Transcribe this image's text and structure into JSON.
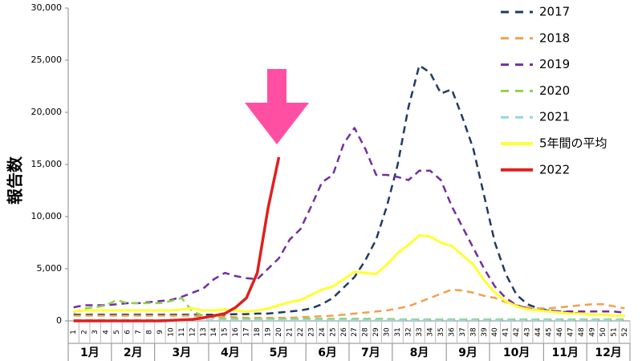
{
  "chart_data": {
    "type": "line",
    "y_label": "報告数",
    "categories": [
      "1",
      "2",
      "3",
      "4",
      "5",
      "6",
      "7",
      "8",
      "9",
      "10",
      "11",
      "12",
      "13",
      "14",
      "15",
      "16",
      "17",
      "18",
      "19",
      "20",
      "21",
      "22",
      "23",
      "24",
      "25",
      "26",
      "27",
      "28",
      "29",
      "30",
      "31",
      "32",
      "33",
      "34",
      "35",
      "36",
      "37",
      "38",
      "39",
      "40",
      "41",
      "42",
      "43",
      "44",
      "45",
      "46",
      "47",
      "48",
      "49",
      "50",
      "51",
      "52"
    ],
    "month_groups": [
      {
        "label": "1月",
        "count": 4
      },
      {
        "label": "2月",
        "count": 4
      },
      {
        "label": "3月",
        "count": 5
      },
      {
        "label": "4月",
        "count": 4
      },
      {
        "label": "5月",
        "count": 5
      },
      {
        "label": "6月",
        "count": 4
      },
      {
        "label": "7月",
        "count": 4
      },
      {
        "label": "8月",
        "count": 5
      },
      {
        "label": "9月",
        "count": 4
      },
      {
        "label": "10月",
        "count": 5
      },
      {
        "label": "11月",
        "count": 4
      },
      {
        "label": "12月",
        "count": 4
      }
    ],
    "ylim": [
      0,
      30000
    ],
    "yticks": [
      0,
      {
        "value": 5000,
        "label": "5,000"
      },
      {
        "value": 10000,
        "label": "10,000"
      },
      {
        "value": 15000,
        "label": "15,000"
      },
      {
        "value": 20000,
        "label": "20,000"
      },
      {
        "value": 25000,
        "label": "25,000"
      },
      {
        "value": 30000,
        "label": "30,000"
      }
    ],
    "series": [
      {
        "name": "2017",
        "color": "#1f3b64",
        "dashed": true,
        "values": [
          600,
          600,
          600,
          600,
          600,
          600,
          600,
          600,
          600,
          600,
          600,
          600,
          600,
          600,
          600,
          650,
          650,
          700,
          700,
          800,
          900,
          1000,
          1200,
          1600,
          2200,
          3200,
          4200,
          5800,
          7800,
          11000,
          15000,
          20500,
          24500,
          23800,
          21800,
          22200,
          19500,
          16500,
          12000,
          7500,
          4500,
          2500,
          1600,
          1200,
          1000,
          900,
          800,
          700,
          600,
          600,
          500,
          500
        ]
      },
      {
        "name": "2018",
        "color": "#f0a050",
        "dashed": true,
        "values": [
          500,
          500,
          500,
          500,
          500,
          500,
          500,
          500,
          500,
          500,
          500,
          500,
          450,
          400,
          400,
          350,
          300,
          300,
          300,
          300,
          300,
          350,
          400,
          450,
          500,
          600,
          700,
          800,
          900,
          1000,
          1200,
          1400,
          1800,
          2200,
          2600,
          3000,
          2900,
          2700,
          2400,
          2200,
          1800,
          1500,
          1300,
          1200,
          1200,
          1300,
          1400,
          1500,
          1600,
          1600,
          1400,
          1200
        ]
      },
      {
        "name": "2019",
        "color": "#7030a0",
        "dashed": true,
        "values": [
          1300,
          1500,
          1500,
          1500,
          1600,
          1700,
          1700,
          1800,
          1900,
          2000,
          2300,
          2700,
          3100,
          4000,
          4600,
          4300,
          4100,
          4000,
          5000,
          6000,
          7800,
          8800,
          11000,
          13300,
          14000,
          17000,
          18500,
          16500,
          14000,
          14000,
          13800,
          13500,
          14400,
          14400,
          13500,
          11000,
          9000,
          7000,
          5000,
          3300,
          2200,
          1500,
          1200,
          1000,
          1000,
          900,
          900,
          900,
          900,
          900,
          900,
          800
        ]
      },
      {
        "name": "2020",
        "color": "#92d050",
        "dashed": true,
        "values": [
          800,
          1200,
          1300,
          1500,
          2000,
          1700,
          1700,
          1700,
          1700,
          1900,
          2200,
          900,
          500,
          300,
          200,
          200,
          200,
          200,
          200,
          200,
          200,
          200,
          200,
          200,
          200,
          200,
          200,
          200,
          200,
          200,
          150,
          150,
          150,
          150,
          150,
          150,
          150,
          150,
          150,
          150,
          150,
          150,
          150,
          150,
          150,
          150,
          150,
          150,
          150,
          150,
          150,
          150
        ]
      },
      {
        "name": "2021",
        "color": "#92d8e0",
        "dashed": true,
        "values": [
          100,
          100,
          100,
          100,
          100,
          100,
          100,
          100,
          100,
          100,
          100,
          100,
          100,
          100,
          100,
          100,
          100,
          100,
          100,
          100,
          100,
          100,
          100,
          100,
          100,
          100,
          100,
          100,
          100,
          100,
          100,
          100,
          100,
          100,
          100,
          100,
          100,
          100,
          100,
          100,
          100,
          100,
          100,
          100,
          100,
          100,
          100,
          100,
          100,
          100,
          100,
          100
        ]
      },
      {
        "name": "5年間の平均",
        "color": "#ffff33",
        "dashed": false,
        "values": [
          900,
          1000,
          1000,
          1000,
          1000,
          1000,
          1000,
          1000,
          1000,
          1000,
          1100,
          1200,
          1000,
          1000,
          1100,
          1000,
          900,
          1000,
          1200,
          1500,
          1800,
          2000,
          2500,
          3000,
          3300,
          4000,
          4700,
          4600,
          4500,
          5400,
          6500,
          7300,
          8200,
          8100,
          7500,
          7200,
          6300,
          5400,
          3900,
          2700,
          1900,
          1400,
          1100,
          1000,
          900,
          800,
          700,
          700,
          600,
          600,
          500,
          500
        ]
      },
      {
        "name": "2022",
        "color": "#e02020",
        "dashed": false,
        "values": [
          0,
          0,
          0,
          0,
          0,
          0,
          0,
          0,
          0,
          50,
          100,
          150,
          300,
          500,
          700,
          1300,
          2200,
          4600,
          10800,
          15700,
          null,
          null,
          null,
          null,
          null,
          null,
          null,
          null,
          null,
          null,
          null,
          null,
          null,
          null,
          null,
          null,
          null,
          null,
          null,
          null,
          null,
          null,
          null,
          null,
          null,
          null,
          null,
          null,
          null,
          null,
          null,
          null
        ]
      }
    ]
  }
}
